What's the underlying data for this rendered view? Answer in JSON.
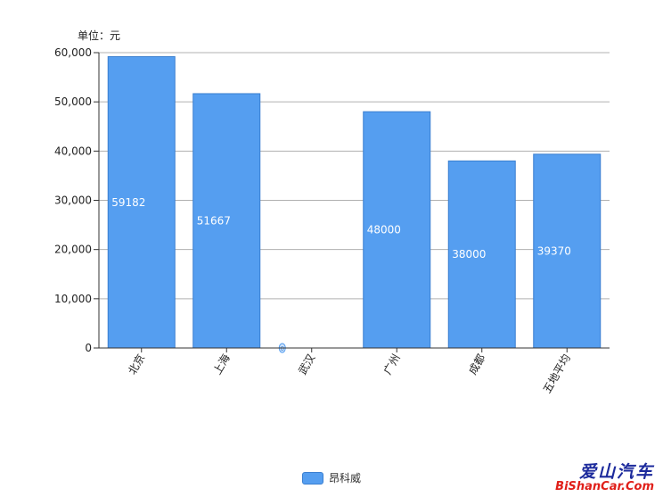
{
  "unit_label": "单位：元",
  "legend": {
    "label": "昂科威",
    "color": "#559ef0"
  },
  "watermark": {
    "cn": "爱山汽车",
    "en": "BiShanCar.Com"
  },
  "chart_data": {
    "type": "bar",
    "categories": [
      "北京",
      "上海",
      "武汉",
      "广州",
      "成都",
      "五地平均"
    ],
    "series": [
      {
        "name": "昂科威",
        "values": [
          59182,
          51667,
          0,
          48000,
          38000,
          39370
        ]
      }
    ],
    "data_labels": [
      "59182",
      "51667",
      "0",
      "48000",
      "38000",
      "39370"
    ],
    "yticks": [
      "0",
      "10,000",
      "20,000",
      "30,000",
      "40,000",
      "50,000",
      "60,000"
    ],
    "ylim": [
      0,
      60000
    ],
    "grid": true,
    "legend_position": "bottom",
    "bar_color": "#559ef0"
  }
}
